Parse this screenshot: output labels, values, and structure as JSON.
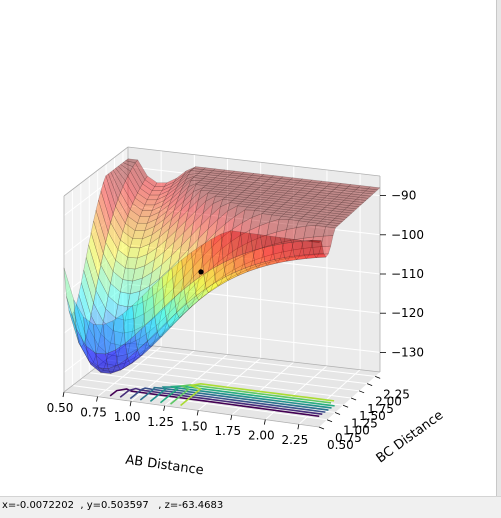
{
  "chart_data": {
    "type": "surface3d",
    "title": "",
    "xlabel": "AB Distance",
    "ylabel": "BC Distance",
    "zlabel": "",
    "x_ticks": [
      "0.50",
      "0.75",
      "1.00",
      "1.25",
      "1.50",
      "1.75",
      "2.00",
      "2.25"
    ],
    "y_ticks": [
      "0.50",
      "0.75",
      "1.00",
      "1.25",
      "1.50",
      "1.75",
      "2.00",
      "2.25"
    ],
    "z_ticks": [
      "−130",
      "−120",
      "−110",
      "−100",
      "−90"
    ],
    "xlim": [
      0.5,
      2.4
    ],
    "ylim": [
      0.5,
      2.4
    ],
    "zlim": [
      -135,
      -85
    ],
    "surface_colormap": "jet",
    "contour_colormap": "viridis",
    "contour_levels": [
      -130,
      -125,
      -120,
      -115,
      -110,
      -105,
      -100,
      -95
    ],
    "marker_point": {
      "x": 1.2,
      "y": 1.8,
      "z": -110
    },
    "grid": true
  },
  "status": {
    "text": "x=-0.0072202  , y=0.503597   , z=-63.4683"
  }
}
